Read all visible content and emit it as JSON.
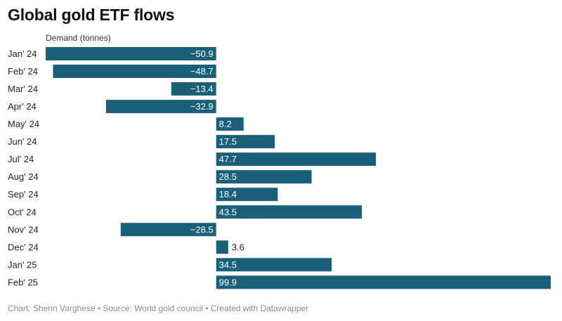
{
  "chart_data": {
    "type": "bar",
    "orientation": "horizontal",
    "title": "Global gold ETF flows",
    "ylabel": "",
    "xlabel": "Demand (tonnes)",
    "categories": [
      "Jan' 24",
      "Feb' 24",
      "Mar' 24",
      "Apr' 24",
      "May' 24",
      "Jun' 24",
      "Jul' 24",
      "Aug' 24",
      "Sep' 24",
      "Oct' 24",
      "Nov' 24",
      "Dec' 24",
      "Jan' 25",
      "Feb' 25"
    ],
    "values": [
      -50.9,
      -48.7,
      -13.4,
      -32.9,
      8.2,
      17.5,
      47.7,
      28.5,
      18.4,
      43.5,
      -28.5,
      3.6,
      34.5,
      99.9
    ],
    "value_labels": [
      "−50.9",
      "−48.7",
      "−13.4",
      "−32.9",
      "8.2",
      "17.5",
      "47.7",
      "28.5",
      "18.4",
      "43.5",
      "−28.5",
      "3.6",
      "34.5",
      "99.9"
    ],
    "xlim": [
      -50.9,
      99.9
    ],
    "bar_color": "#1b6079",
    "grid": false,
    "legend": "none"
  },
  "footer": "Chart: Sherin Varghese • Source: World gold council • Created with Datawrapper"
}
